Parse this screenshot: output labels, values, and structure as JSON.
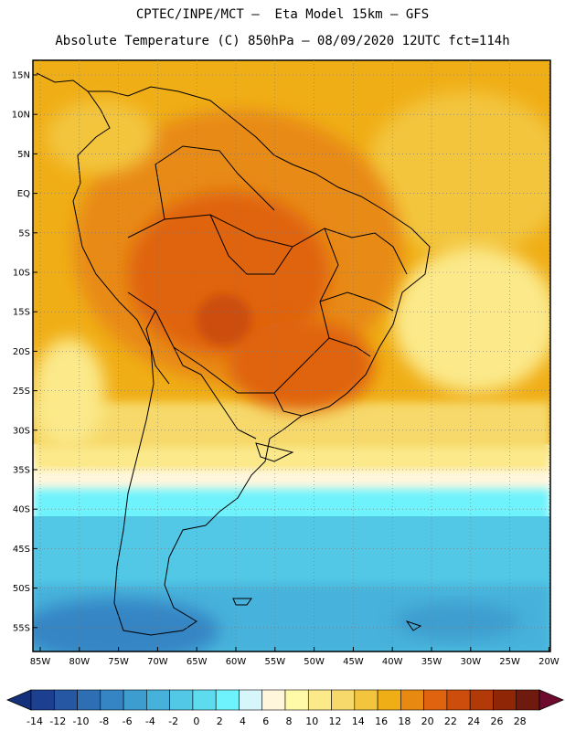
{
  "header": {
    "line1": "CPTEC/INPE/MCT –  Eta Model 15km – GFS",
    "line2": "Absolute Temperature (C) 850hPa – 08/09/2020 12UTC fct=114h"
  },
  "axes": {
    "lat_labels": [
      "15N",
      "10N",
      "5N",
      "EQ",
      "5S",
      "10S",
      "15S",
      "20S",
      "25S",
      "30S",
      "35S",
      "40S",
      "45S",
      "50S",
      "55S"
    ],
    "lon_labels": [
      "85W",
      "80W",
      "75W",
      "70W",
      "65W",
      "60W",
      "55W",
      "50W",
      "45W",
      "40W",
      "35W",
      "30W",
      "25W",
      "20W"
    ]
  },
  "colorbar": {
    "labels": [
      "-14",
      "-12",
      "-10",
      "-8",
      "-6",
      "-4",
      "-2",
      "0",
      "2",
      "4",
      "6",
      "8",
      "10",
      "12",
      "14",
      "16",
      "18",
      "20",
      "22",
      "24",
      "26",
      "28"
    ],
    "colors": [
      "#1c3f8f",
      "#2657a3",
      "#2e6fb4",
      "#3585c4",
      "#3d9dcf",
      "#46b2db",
      "#52c8e6",
      "#5ddcef",
      "#6ef2fb",
      "#d7f6fc",
      "#fff6dc",
      "#fffaa8",
      "#fbe98a",
      "#f6d96a",
      "#f3c53e",
      "#f0ae16",
      "#e88a12",
      "#e06310",
      "#cc4d0c",
      "#b13a08",
      "#8f2606",
      "#6e1a0e"
    ]
  },
  "map": {
    "ocean_color": "#f3c53e",
    "land_color": "#f0ae16",
    "hot_color": "#e88a12",
    "core_color": "#cc4d0c",
    "cold_color": "#52c8e6",
    "deep_cold_color": "#3d9dcf"
  }
}
